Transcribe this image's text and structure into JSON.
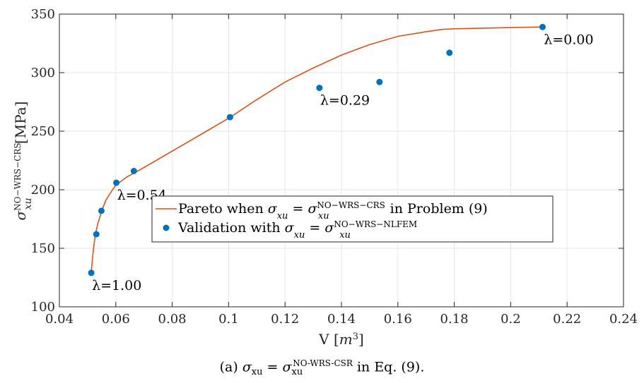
{
  "chart_data": {
    "type": "scatter",
    "xlabel": "V [m³]",
    "ylabel": "σ_xu^NO−WRS−CRS [MPa]",
    "xlim": [
      0.04,
      0.24
    ],
    "ylim": [
      100,
      350
    ],
    "xticks": [
      0.04,
      0.06,
      0.08,
      0.1,
      0.12,
      0.14,
      0.16,
      0.18,
      0.2,
      0.22,
      0.24
    ],
    "xtick_labels": [
      "0.04",
      "0.06",
      "0.08",
      "0.1",
      "0.12",
      "0.14",
      "0.16",
      "0.18",
      "0.2",
      "0.22",
      "0.24"
    ],
    "yticks": [
      100,
      150,
      200,
      250,
      300,
      350
    ],
    "ytick_labels": [
      "100",
      "150",
      "200",
      "250",
      "300",
      "350"
    ],
    "grid": true,
    "legend_position": "center-right",
    "series": [
      {
        "name": "Pareto when σ_xu = σ_xu^NO−WRS−CRS in Problem (9)",
        "kind": "line",
        "color": "#D95319",
        "x": [
          0.0513,
          0.0516,
          0.0521,
          0.0527,
          0.0535,
          0.0545,
          0.0555,
          0.0565,
          0.058,
          0.06,
          0.064,
          0.07,
          0.08,
          0.09,
          0.1,
          0.11,
          0.12,
          0.13,
          0.14,
          0.15,
          0.16,
          0.17,
          0.176,
          0.18,
          0.19,
          0.2,
          0.21,
          0.2115
        ],
        "y": [
          130,
          138,
          150,
          161,
          170,
          178,
          185,
          191,
          197,
          204,
          211,
          219,
          233,
          247,
          261,
          277,
          292,
          304,
          315,
          324,
          331,
          335,
          337,
          337.5,
          338,
          338.5,
          339,
          339
        ]
      },
      {
        "name": "Validation with σ_xu = σ_xu^NO−WRS−NLFEM",
        "kind": "scatter",
        "color": "#0072BD",
        "x": [
          0.0513,
          0.0531,
          0.0549,
          0.0602,
          0.0664,
          0.1005,
          0.1322,
          0.1535,
          0.1783,
          0.2113
        ],
        "y": [
          129,
          162,
          182,
          206,
          216,
          262,
          287,
          292,
          317,
          339
        ]
      }
    ],
    "annotations": [
      {
        "text": "λ=0.00",
        "x": 0.2115,
        "y": 339
      },
      {
        "text": "λ=0.29",
        "x": 0.1322,
        "y": 287
      },
      {
        "text": "λ=0.54",
        "x": 0.0602,
        "y": 206
      },
      {
        "text": "λ=1.00",
        "x": 0.0513,
        "y": 129
      }
    ]
  },
  "caption": "(a) σ_xu = σ_xu^NO-WRS-CSR in Eq. (9)."
}
